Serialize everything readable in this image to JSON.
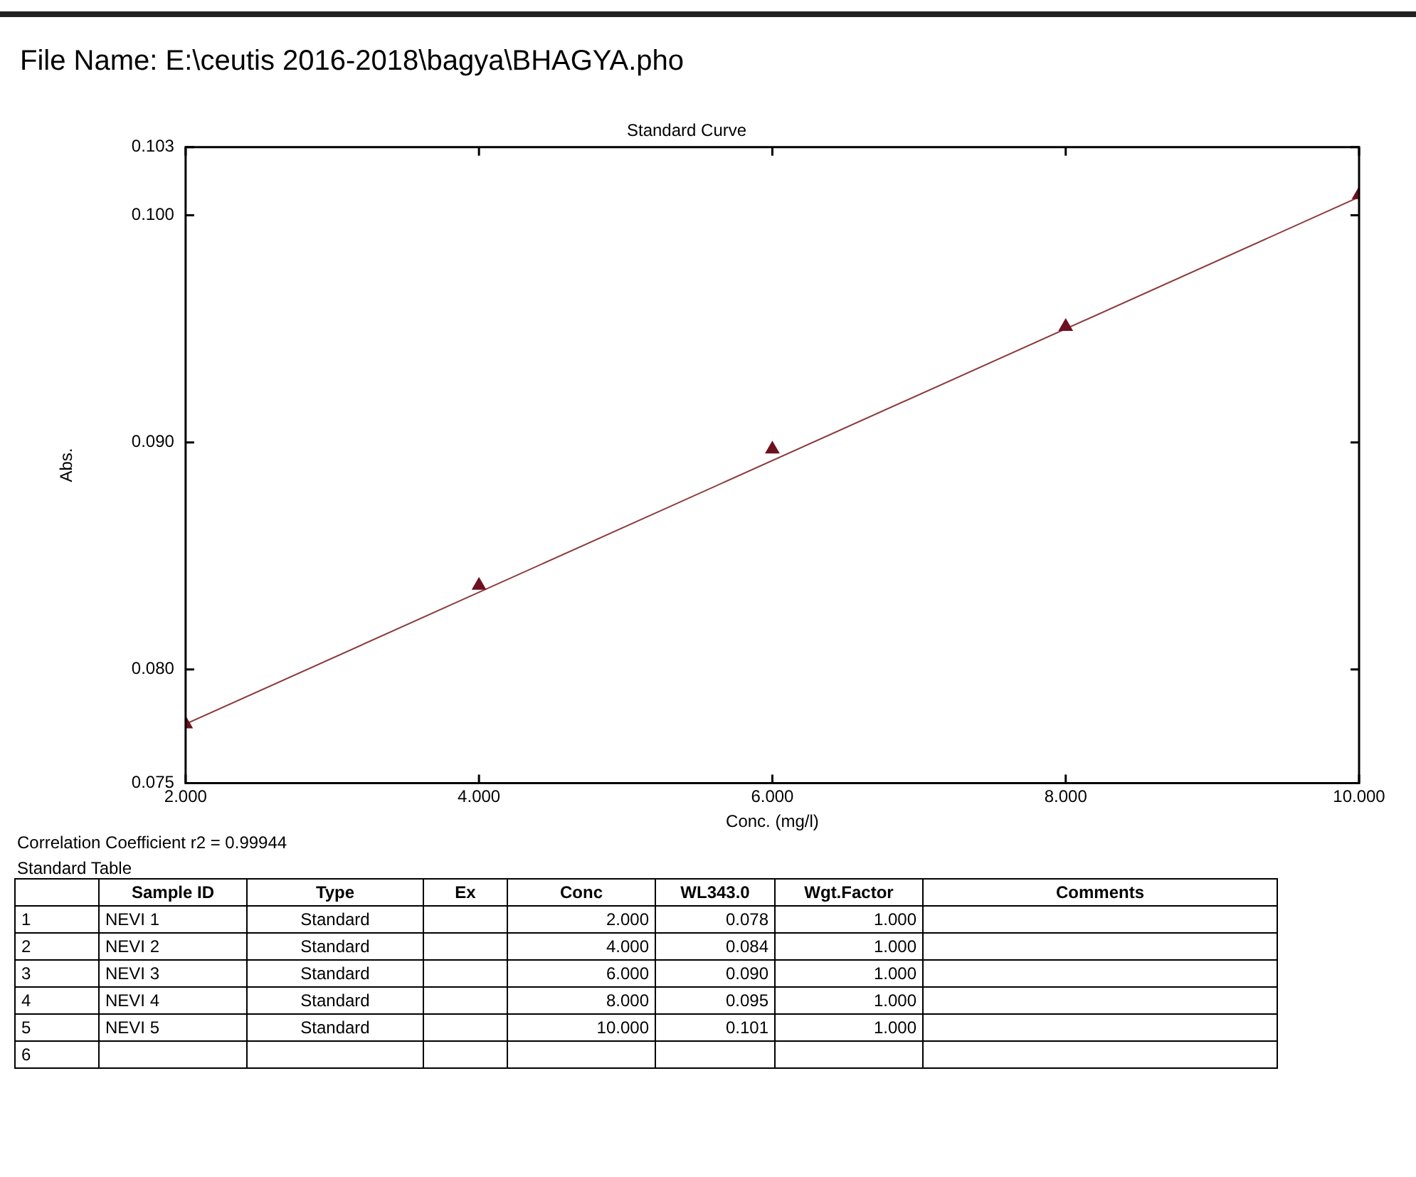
{
  "chart_data": {
    "type": "scatter",
    "title": "Standard Curve",
    "subtitle": "File Name: E:\\ceutis 2016-2018\\bagya\\BHAGYA.pho",
    "xlabel": "Conc. (mg/l)",
    "ylabel": "Abs.",
    "x": [
      2,
      4,
      6,
      8,
      10
    ],
    "series": [
      {
        "type": "scatter",
        "color": "#6e1020",
        "marker": "triangle",
        "values": [
          0.0776,
          0.0837,
          0.0897,
          0.0951,
          0.1009
        ]
      },
      {
        "type": "line",
        "color": "#8b3a3a",
        "marker": "none",
        "x": [
          2,
          10
        ],
        "values": [
          0.0776,
          0.1008
        ]
      }
    ],
    "xlim": [
      2,
      10
    ],
    "xticks": [
      {
        "value": 2,
        "label": "2.000"
      },
      {
        "value": 4,
        "label": "4.000"
      },
      {
        "value": 6,
        "label": "6.000"
      },
      {
        "value": 8,
        "label": "8.000"
      },
      {
        "value": 10,
        "label": "10.000"
      }
    ],
    "ylim": [
      0.075,
      0.103
    ],
    "yticks": [
      {
        "value": 0.075,
        "label": "0.075"
      },
      {
        "value": 0.08,
        "label": "0.080"
      },
      {
        "value": 0.09,
        "label": "0.090"
      },
      {
        "value": 0.1,
        "label": "0.100"
      },
      {
        "value": 0.103,
        "label": "0.103"
      }
    ],
    "grid": false,
    "legend": false,
    "annotations": [
      "Correlation Coefficient r2 = 0.99944",
      "Standard Table",
      "Sample ID",
      "Type",
      "Ex",
      "Conc",
      "WL343.0",
      "Wgt.Factor",
      "Comments",
      "1",
      "NEVI 1",
      "Standard",
      "2.000",
      "0.078",
      "1.000",
      "2",
      "NEVI 2",
      "Standard",
      "4.000",
      "0.084",
      "1.000",
      "3",
      "NEVI 3",
      "Standard",
      "6.000",
      "0.090",
      "1.000",
      "4",
      "NEVI 4",
      "Standard",
      "8.000",
      "0.095",
      "1.000",
      "5",
      "NEVI 5",
      "Standard",
      "10.000",
      "0.101",
      "1.000",
      "6"
    ]
  }
}
